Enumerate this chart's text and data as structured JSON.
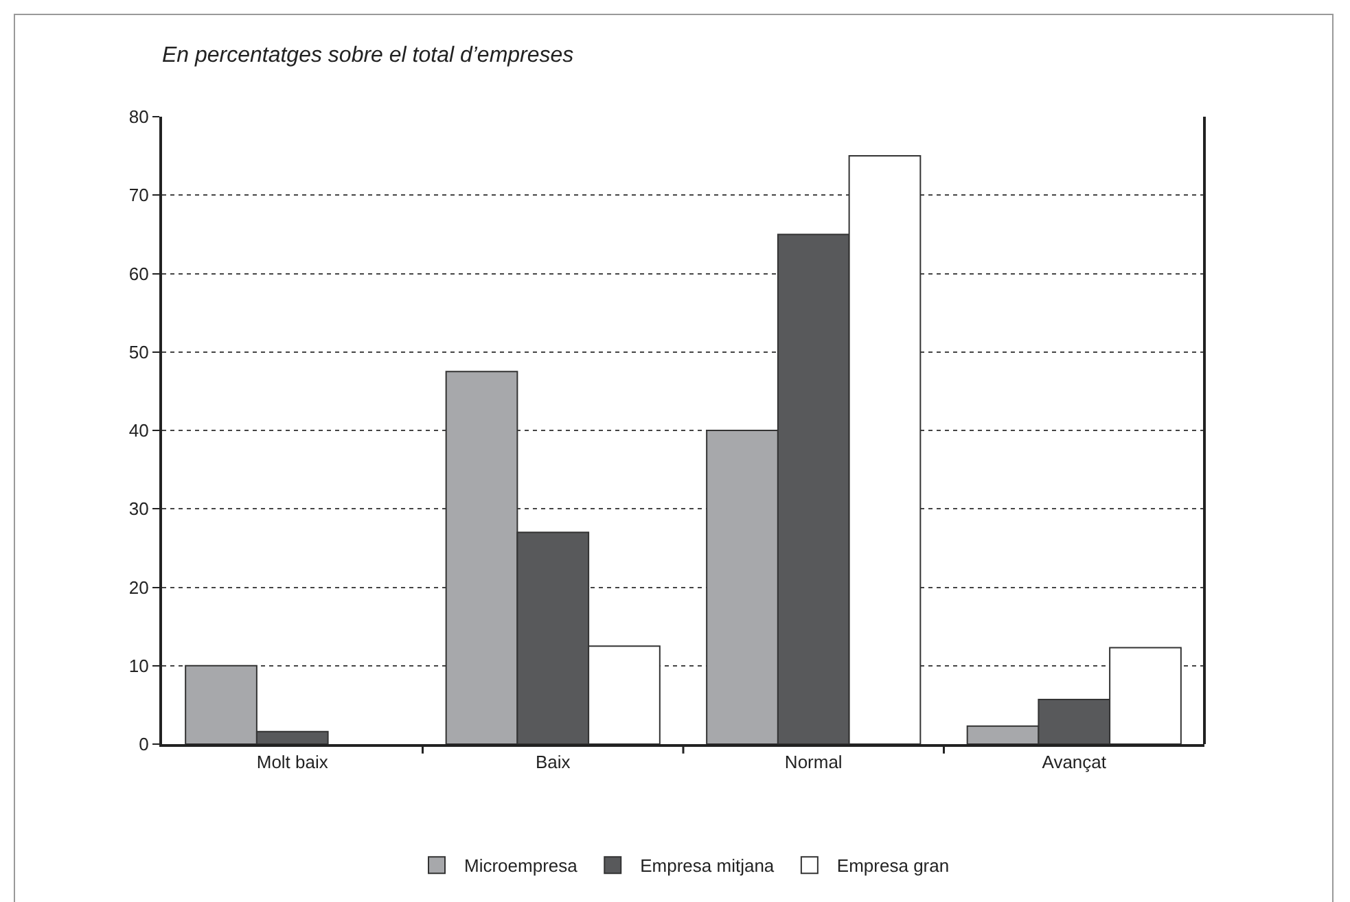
{
  "chart_data": {
    "type": "bar",
    "title": "En percentatges sobre el total d’empreses",
    "categories": [
      "Molt baix",
      "Baix",
      "Normal",
      "Avançat"
    ],
    "series": [
      {
        "name": "Microempresa",
        "color": "#a7a8ab",
        "values": [
          10,
          47.5,
          40,
          2.3
        ]
      },
      {
        "name": "Empresa mitjana",
        "color": "#58595b",
        "values": [
          1.6,
          27,
          65,
          5.7
        ]
      },
      {
        "name": "Empresa gran",
        "color": "#ffffff",
        "values": [
          null,
          12.5,
          75,
          12.3
        ]
      }
    ],
    "ylim": [
      0,
      80
    ],
    "yticks": [
      0,
      10,
      20,
      30,
      40,
      50,
      60,
      70,
      80
    ],
    "grid": "y",
    "legend": "bottom"
  }
}
